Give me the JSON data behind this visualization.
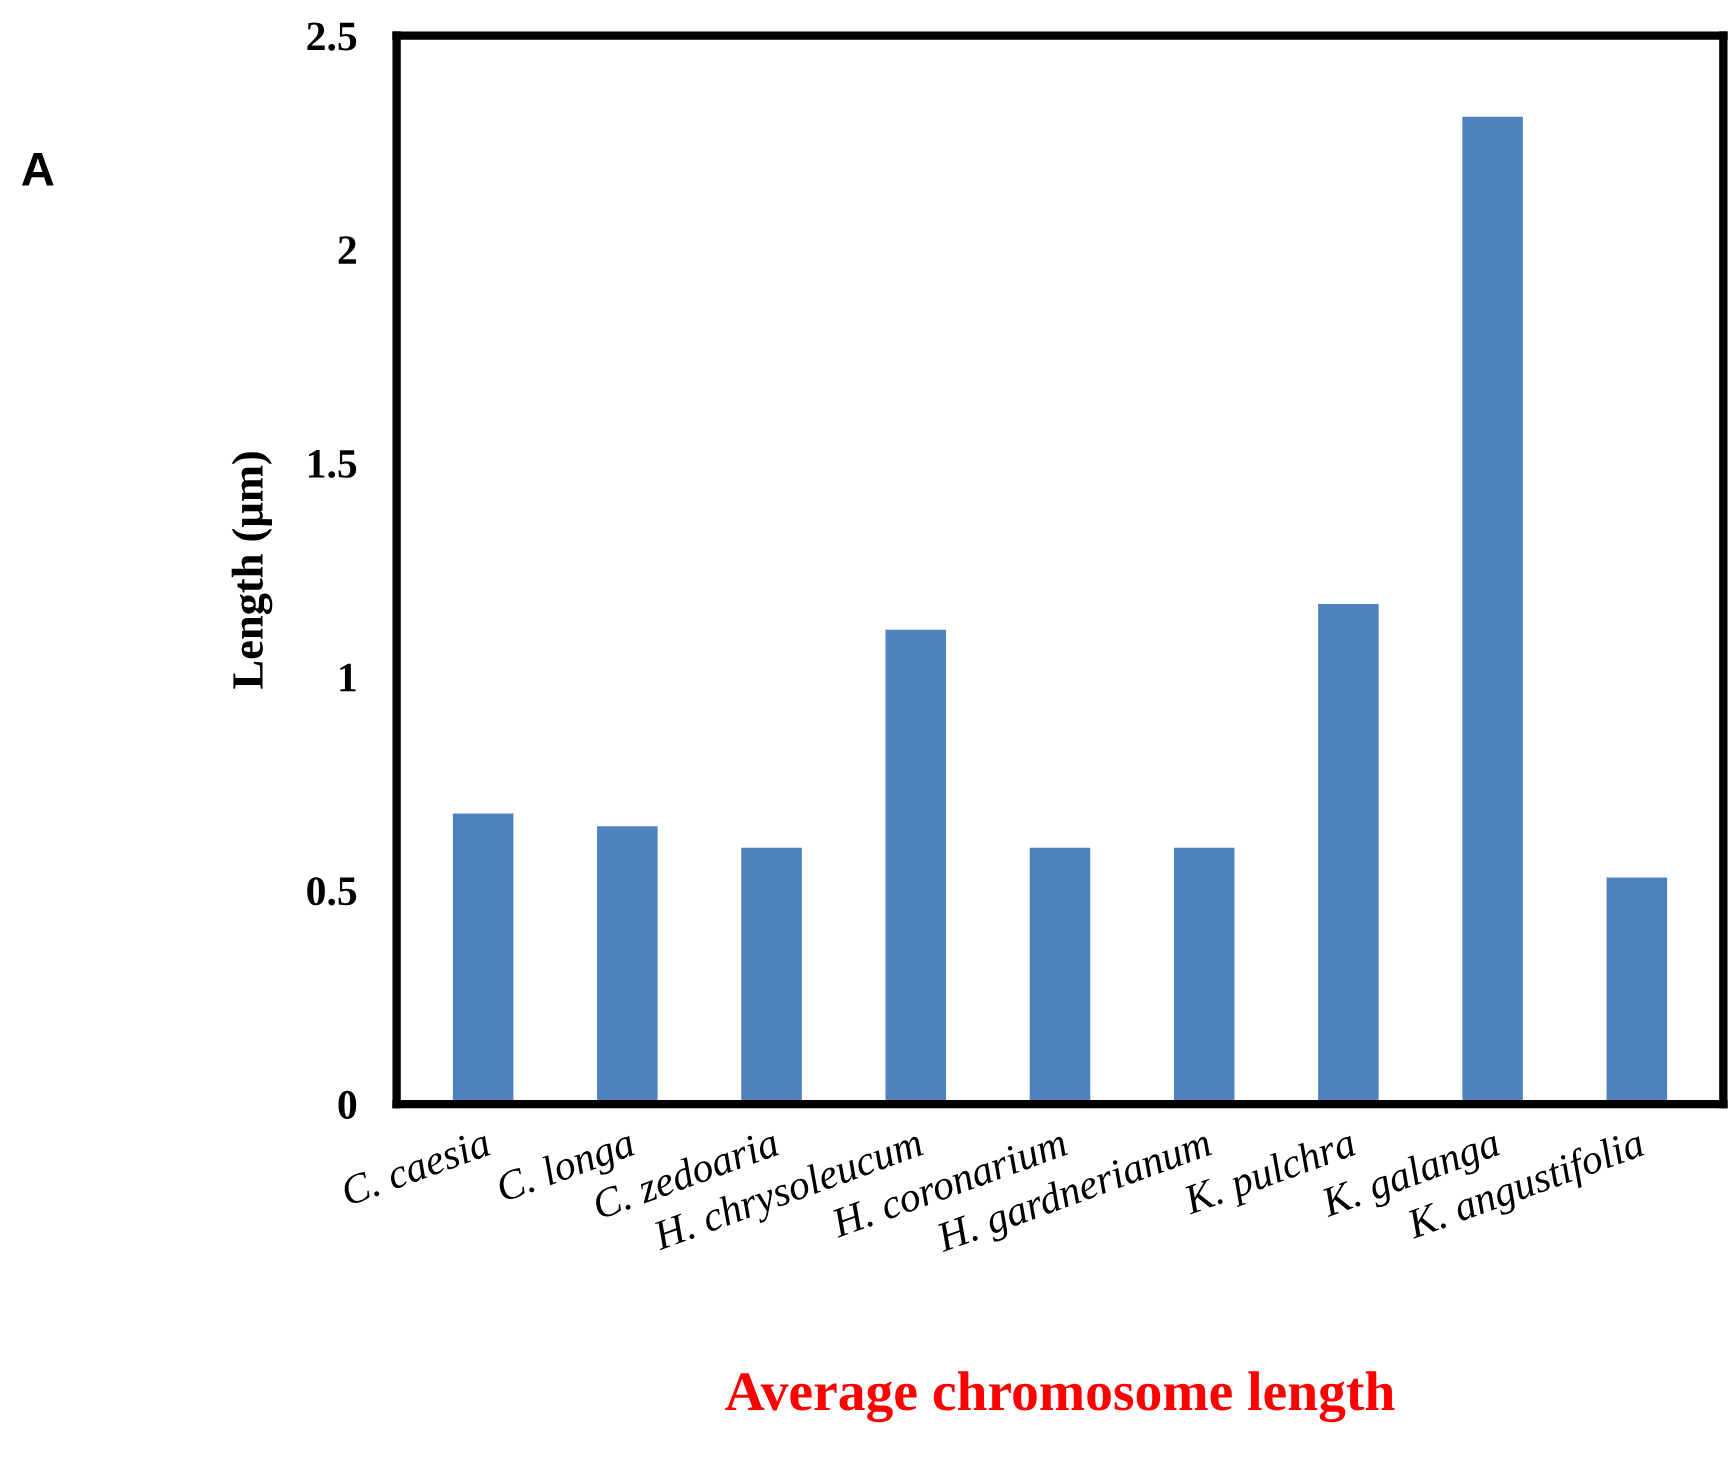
{
  "chart_data": {
    "type": "bar",
    "xlabel": "Average chromosome length",
    "ylabel": "Length (µm)",
    "annotations": [
      "A"
    ],
    "categories": [
      "C. caesia",
      "C. longa",
      "C. zedoaria",
      "H. chrysoleucum",
      "H. coronarium",
      "H. gardnerianum",
      "K. pulchra",
      "K. galanga",
      "K. angustifolia"
    ],
    "values": [
      0.68,
      0.65,
      0.6,
      1.11,
      0.6,
      0.6,
      1.17,
      2.31,
      0.53
    ],
    "color": "#4f81bd",
    "ylim": [
      0,
      2.5
    ],
    "yticks": [
      0,
      0.5,
      1,
      1.5,
      2,
      2.5
    ],
    "grid": false,
    "legend": false
  }
}
